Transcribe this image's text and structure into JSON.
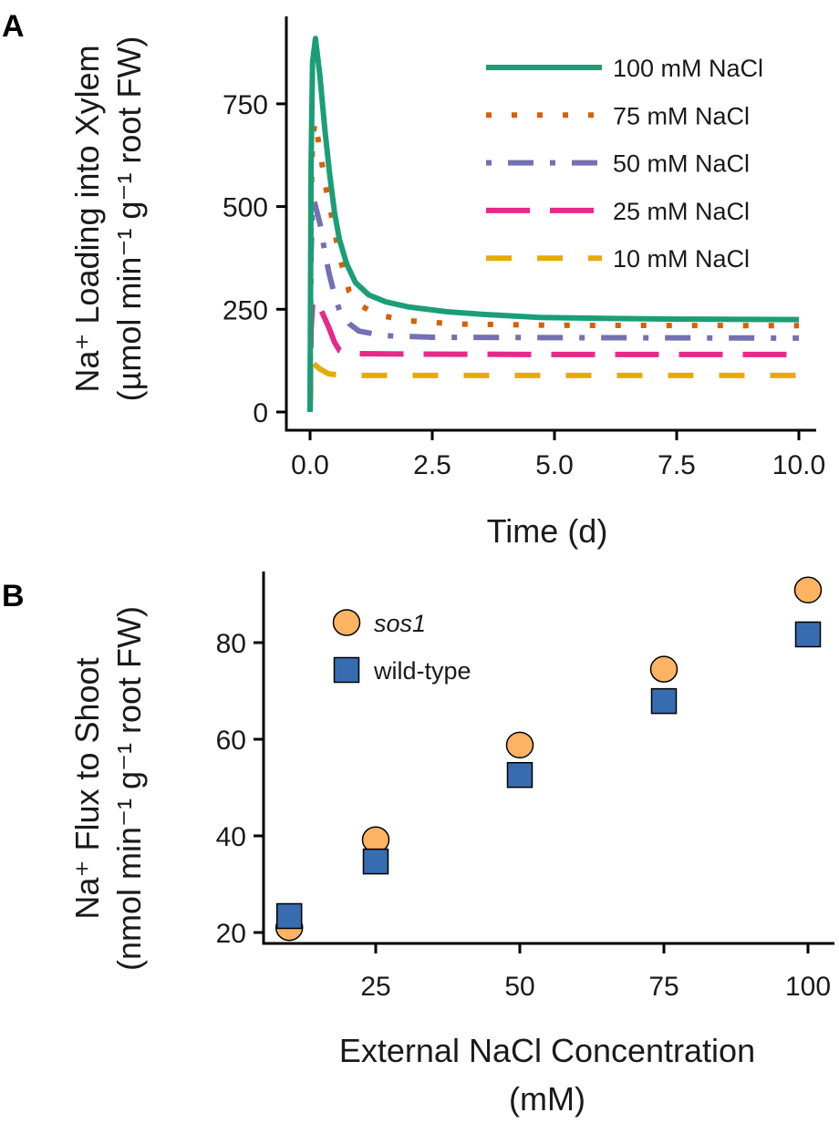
{
  "chart_data": [
    {
      "panel": "A",
      "type": "line",
      "xlabel": "Time (d)",
      "ylabel_line1": "Na⁺ Loading into Xylem",
      "ylabel_line2": "(µmol min⁻¹ g⁻¹ root FW)",
      "xlim": [
        0,
        10
      ],
      "ylim": [
        0,
        909
      ],
      "xticks": [
        "0.0",
        "2.5",
        "5.0",
        "7.5",
        "10.0"
      ],
      "xtick_values": [
        0,
        2.5,
        5,
        7.5,
        10
      ],
      "yticks": [
        "0",
        "250",
        "500",
        "750"
      ],
      "ytick_values": [
        0,
        250,
        500,
        750
      ],
      "legend_position": "top-right",
      "series": [
        {
          "name": "100 mM NaCl",
          "color": "#1b9e77",
          "style": "solid",
          "x": [
            0,
            0.02,
            0.05,
            0.11,
            0.2,
            0.3,
            0.4,
            0.5,
            0.6,
            0.75,
            0.93,
            1.2,
            1.55,
            2.0,
            2.8,
            3.5,
            4.7,
            6,
            7.5,
            10
          ],
          "y": [
            0,
            600,
            850,
            909,
            820,
            690,
            580,
            486,
            420,
            360,
            315,
            285,
            268,
            256,
            244,
            238,
            230,
            228,
            226,
            225
          ]
        },
        {
          "name": "75 mM NaCl",
          "color": "#d95f02",
          "style": "dotted",
          "x": [
            0,
            0.02,
            0.05,
            0.1,
            0.2,
            0.3,
            0.44,
            0.6,
            0.8,
            1.0,
            1.36,
            2.0,
            3,
            5,
            10
          ],
          "y": [
            0,
            500,
            660,
            707,
            640,
            560,
            477,
            380,
            293,
            262,
            237,
            222,
            214,
            211,
            210
          ]
        },
        {
          "name": "50 mM NaCl",
          "color": "#7570b3",
          "style": "dashdot",
          "x": [
            0,
            0.02,
            0.05,
            0.08,
            0.2,
            0.3,
            0.39,
            0.5,
            0.6,
            0.8,
            1.0,
            1.5,
            2.5,
            5,
            10
          ],
          "y": [
            0,
            380,
            500,
            515,
            460,
            390,
            337,
            285,
            248,
            215,
            197,
            186,
            182,
            181,
            180
          ]
        },
        {
          "name": "25 mM NaCl",
          "color": "#e7298a",
          "style": "longdash",
          "x": [
            0,
            0.02,
            0.05,
            0.1,
            0.2,
            0.3,
            0.39,
            0.5,
            0.6,
            0.8,
            1.0,
            2,
            5,
            10
          ],
          "y": [
            0,
            200,
            262,
            275,
            255,
            228,
            204,
            170,
            150,
            143,
            142,
            141,
            140,
            140
          ]
        },
        {
          "name": "10 mM NaCl",
          "color": "#e6ab02",
          "style": "dashed",
          "x": [
            0,
            0.02,
            0.05,
            0.1,
            0.2,
            0.38,
            0.6,
            1.0,
            2,
            5,
            10
          ],
          "y": [
            0,
            100,
            120,
            115,
            105,
            93,
            90,
            89,
            89,
            89,
            89
          ]
        }
      ]
    },
    {
      "panel": "B",
      "type": "scatter",
      "xlabel_line1": "External NaCl Concentration",
      "xlabel_line2": "(mM)",
      "ylabel_line1": "Na⁺ Flux to Shoot",
      "ylabel_line2": "(nmol min⁻¹ g⁻¹ root FW)",
      "xlim": [
        1,
        104
      ],
      "ylim": [
        17.6,
        94
      ],
      "xticks": [
        "25",
        "50",
        "75",
        "100"
      ],
      "xtick_values": [
        25,
        50,
        75,
        100
      ],
      "yticks": [
        "20",
        "40",
        "60",
        "80"
      ],
      "ytick_values": [
        20,
        40,
        60,
        80
      ],
      "legend_position": "top-left",
      "x": [
        10,
        25,
        50,
        75,
        100
      ],
      "series": [
        {
          "name": "sos1",
          "marker": "circle",
          "color": "#fdb462",
          "values": [
            21.0,
            39.2,
            58.8,
            74.5,
            90.9
          ]
        },
        {
          "name": "wild-type",
          "marker": "square",
          "color": "#386cb0",
          "values": [
            23.4,
            34.7,
            52.6,
            67.9,
            81.7
          ]
        }
      ]
    }
  ],
  "panel_labels": [
    "A",
    "B"
  ]
}
